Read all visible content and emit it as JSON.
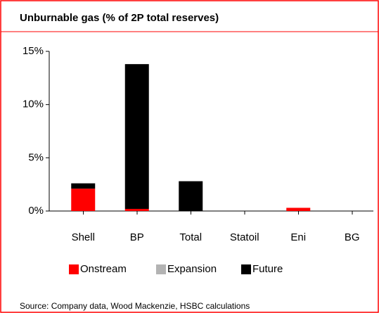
{
  "chart_data": {
    "type": "stacked_bar",
    "title": "Unburnable gas (% of 2P total reserves)",
    "source": "Source: Company data, Wood Mackenzie, HSBC calculations",
    "categories": [
      "Shell",
      "BP",
      "Total",
      "Statoil",
      "Eni",
      "BG"
    ],
    "series": [
      {
        "name": "Onstream",
        "color": "#ff0000",
        "values": [
          2.1,
          0.2,
          0,
          0,
          0.3,
          0
        ]
      },
      {
        "name": "Expansion",
        "color": "#b3b3b3",
        "values": [
          0,
          0,
          0,
          0,
          0,
          0
        ]
      },
      {
        "name": "Future",
        "color": "#000000",
        "values": [
          0.5,
          13.6,
          2.8,
          0,
          0,
          0
        ]
      }
    ],
    "ylim": [
      0,
      15
    ],
    "yticks": [
      {
        "value": 0,
        "label": "0%"
      },
      {
        "value": 5,
        "label": "5%"
      },
      {
        "value": 10,
        "label": "10%"
      },
      {
        "value": 15,
        "label": "15%"
      }
    ],
    "legend": "bottom"
  }
}
